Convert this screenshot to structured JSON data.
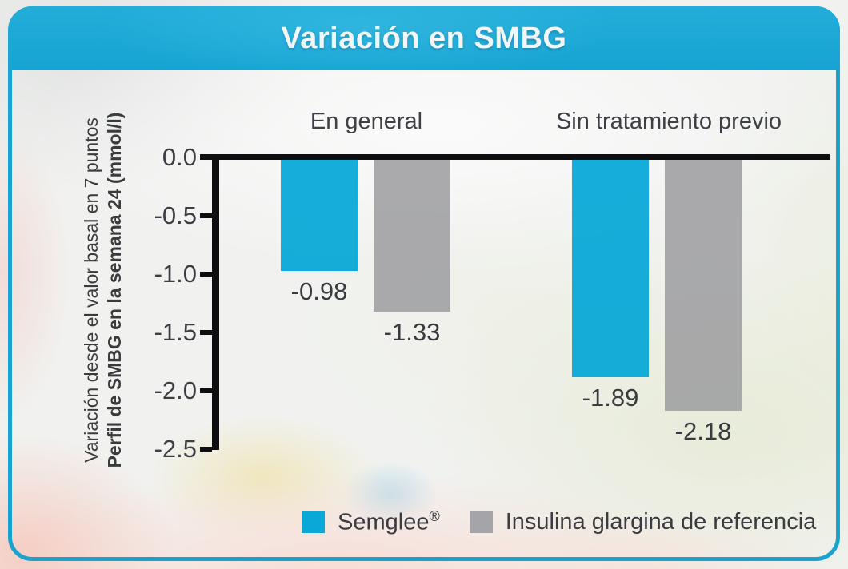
{
  "header": {
    "title": "Variación en SMBG"
  },
  "y_axis_label": {
    "line1": "Variación desde el valor basal en 7 puntos",
    "line2": "Perfil de SMBG en la semana 24 (mmol/l)"
  },
  "chart_data": {
    "type": "bar",
    "title": "Variación en SMBG",
    "groups": [
      "En general",
      "Sin tratamiento previo"
    ],
    "series": [
      {
        "name": "Semglee",
        "mark": "®",
        "color": "rgba(5,167,215,0.93)",
        "swatch_color": "#09a8d7",
        "values": [
          -0.98,
          -1.89
        ]
      },
      {
        "name": "Insulina glargina de referencia",
        "mark": "",
        "color": "rgba(152,152,156,0.82)",
        "swatch_color": "#a5a5a9",
        "values": [
          -1.33,
          -2.18
        ]
      }
    ],
    "value_labels": [
      "-0.98",
      "-1.33",
      "-1.89",
      "-2.18"
    ],
    "y_ticks": [
      "0.0",
      "-0.5",
      "-1.0",
      "-1.5",
      "-2.0",
      "-2.5"
    ],
    "y_tick_values": [
      0,
      -0.5,
      -1.0,
      -1.5,
      -2.0,
      -2.5
    ],
    "ylim": [
      -2.5,
      0
    ],
    "xlabel": "",
    "ylabel": "Variación desde el valor basal en 7 puntos / Perfil de SMBG en la semana 24 (mmol/l)",
    "grid": false,
    "legend_position": "bottom"
  },
  "legend": {
    "items": [
      {
        "label": "Semglee",
        "mark": "®"
      },
      {
        "label": "Insulina glargina de referencia",
        "mark": ""
      }
    ]
  },
  "colors": {
    "accent_cyan": "#17a4d2",
    "border_cyan": "#1aa3cf",
    "bar_cyan": "#09a8d7",
    "bar_gray": "#a5a5a9",
    "axis_black": "#0e0e10"
  }
}
